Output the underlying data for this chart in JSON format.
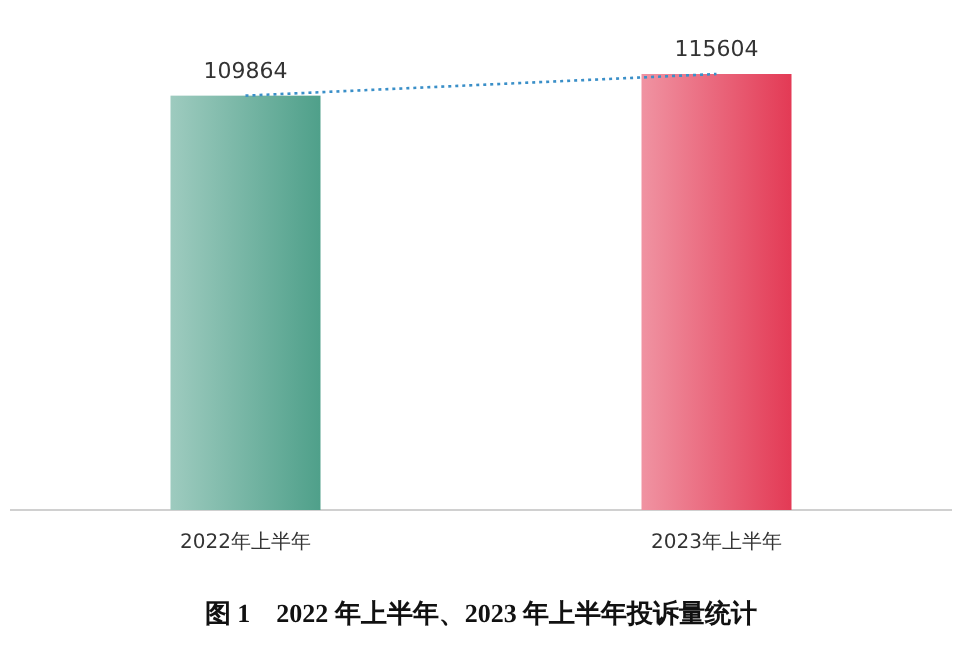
{
  "chart_data": {
    "type": "bar",
    "title": "图 1　2022 年上半年、2023 年上半年投诉量统计",
    "categories": [
      "2022年上半年",
      "2023年上半年"
    ],
    "series": [
      {
        "values": [
          109864,
          115604
        ],
        "colors": [
          "#4fa08a",
          "#e33a55"
        ],
        "value_labels": [
          "109864",
          "115604"
        ]
      },
      {
        "type": "line",
        "values": [
          109864,
          115604
        ],
        "color": "#3a8fc8",
        "line_style": "dotted"
      }
    ]
  }
}
